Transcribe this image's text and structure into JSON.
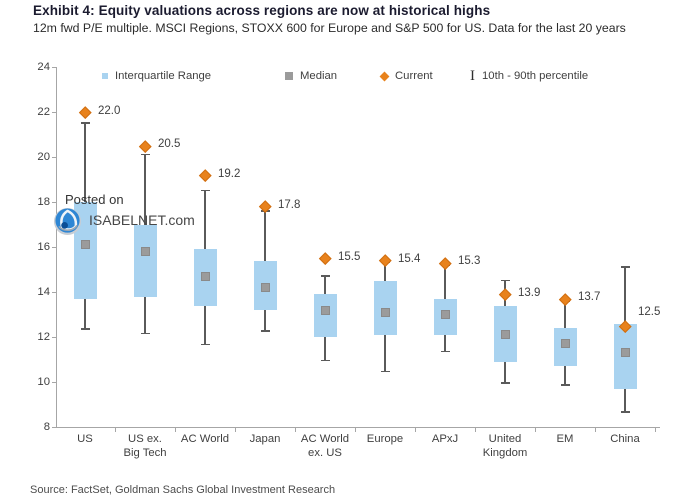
{
  "header": {
    "title": "Exhibit 4: Equity valuations across regions are now at historical highs",
    "subtitle": "12m fwd P/E multiple. MSCI Regions, STOXX 600 for Europe and S&P 500 for US. Data for the last 20 years"
  },
  "watermark": {
    "posted_on": "Posted on",
    "site": "ISABELNET.com"
  },
  "source_line": "Source: FactSet, Goldman Sachs Global Investment Research",
  "chart_data": {
    "type": "boxplot",
    "title": "Exhibit 4: Equity valuations across regions are now at historical highs",
    "xlabel": "",
    "ylabel": "",
    "ylim": [
      8,
      24
    ],
    "yticks": [
      24,
      22,
      20,
      18,
      16,
      14,
      12,
      10,
      8
    ],
    "grid": false,
    "legend_position": "top",
    "legend": [
      {
        "id": "iqr",
        "label": "Interquartile Range"
      },
      {
        "id": "median",
        "label": "Median"
      },
      {
        "id": "current",
        "label": "Current"
      },
      {
        "id": "percentile",
        "label": "10th - 90th percentile"
      }
    ],
    "colors": {
      "iqr_box": "#a9d3f0",
      "median": "#9b9b9b",
      "current": "#e8821c",
      "whisker": "#5a5a5a",
      "axis": "#a6a6a6",
      "text": "#3f3f3f"
    },
    "categories": [
      "US",
      "US ex. Big Tech",
      "AC World",
      "Japan",
      "AC World ex. US",
      "Europe",
      "APxJ",
      "United Kingdom",
      "EM",
      "China"
    ],
    "points": [
      {
        "category": "US",
        "label_lines": [
          "US"
        ],
        "current": 22.0,
        "current_label": "22.0",
        "p90": 21.5,
        "q3": 18.0,
        "median": 16.1,
        "q1": 13.7,
        "p10": 12.4
      },
      {
        "category": "US ex. Big Tech",
        "label_lines": [
          "US ex.",
          "Big Tech"
        ],
        "current": 20.5,
        "current_label": "20.5",
        "p90": 20.1,
        "q3": 17.0,
        "median": 15.8,
        "q1": 13.8,
        "p10": 12.2
      },
      {
        "category": "AC World",
        "label_lines": [
          "AC World"
        ],
        "current": 19.2,
        "current_label": "19.2",
        "p90": 18.5,
        "q3": 15.9,
        "median": 14.7,
        "q1": 13.4,
        "p10": 11.7
      },
      {
        "category": "Japan",
        "label_lines": [
          "Japan"
        ],
        "current": 17.8,
        "current_label": "17.8",
        "p90": 17.6,
        "q3": 15.4,
        "median": 14.2,
        "q1": 13.2,
        "p10": 12.3
      },
      {
        "category": "AC World ex. US",
        "label_lines": [
          "AC World",
          "ex. US"
        ],
        "current": 15.5,
        "current_label": "15.5",
        "p90": 14.7,
        "q3": 13.9,
        "median": 13.2,
        "q1": 12.0,
        "p10": 11.0
      },
      {
        "category": "Europe",
        "label_lines": [
          "Europe"
        ],
        "current": 15.4,
        "current_label": "15.4",
        "p90": 15.3,
        "q3": 14.5,
        "median": 13.1,
        "q1": 12.1,
        "p10": 10.5
      },
      {
        "category": "APxJ",
        "label_lines": [
          "APxJ"
        ],
        "current": 15.3,
        "current_label": "15.3",
        "p90": 15.2,
        "q3": 13.7,
        "median": 13.0,
        "q1": 12.1,
        "p10": 11.4
      },
      {
        "category": "United Kingdom",
        "label_lines": [
          "United",
          "Kingdom"
        ],
        "current": 13.9,
        "current_label": "13.9",
        "p90": 14.5,
        "q3": 13.4,
        "median": 12.1,
        "q1": 10.9,
        "p10": 10.0
      },
      {
        "category": "EM",
        "label_lines": [
          "EM"
        ],
        "current": 13.7,
        "current_label": "13.7",
        "p90": 13.6,
        "q3": 12.4,
        "median": 11.7,
        "q1": 10.7,
        "p10": 9.9
      },
      {
        "category": "China",
        "label_lines": [
          "China"
        ],
        "current": 12.5,
        "current_label": "12.5",
        "p90": 15.1,
        "q3": 12.6,
        "median": 11.3,
        "q1": 9.7,
        "p10": 8.7,
        "current_label_above": true
      }
    ]
  }
}
